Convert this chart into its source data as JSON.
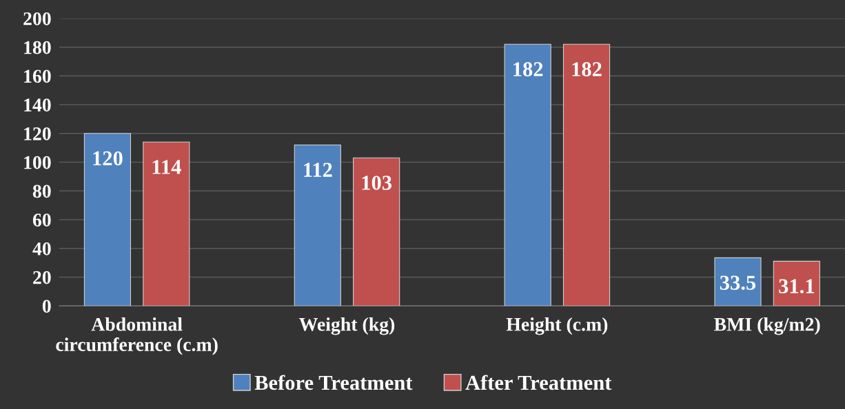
{
  "chart_data": {
    "type": "bar",
    "categories": [
      "Abdominal\ncircumference (c.m)",
      "Weight (kg)",
      "Height (c.m)",
      "BMI (kg/m2)"
    ],
    "series": [
      {
        "name": "Before Treatment",
        "color": "#4f81bd",
        "values": [
          120,
          112,
          182,
          33.5
        ]
      },
      {
        "name": "After Treatment",
        "color": "#c0504d",
        "values": [
          114,
          103,
          182,
          31.1
        ]
      }
    ],
    "ylim": [
      0,
      200
    ],
    "yticks": [
      0,
      20,
      40,
      60,
      80,
      100,
      120,
      140,
      160,
      180,
      200
    ],
    "grid": "y",
    "legend": "bottom",
    "data_labels": true
  }
}
